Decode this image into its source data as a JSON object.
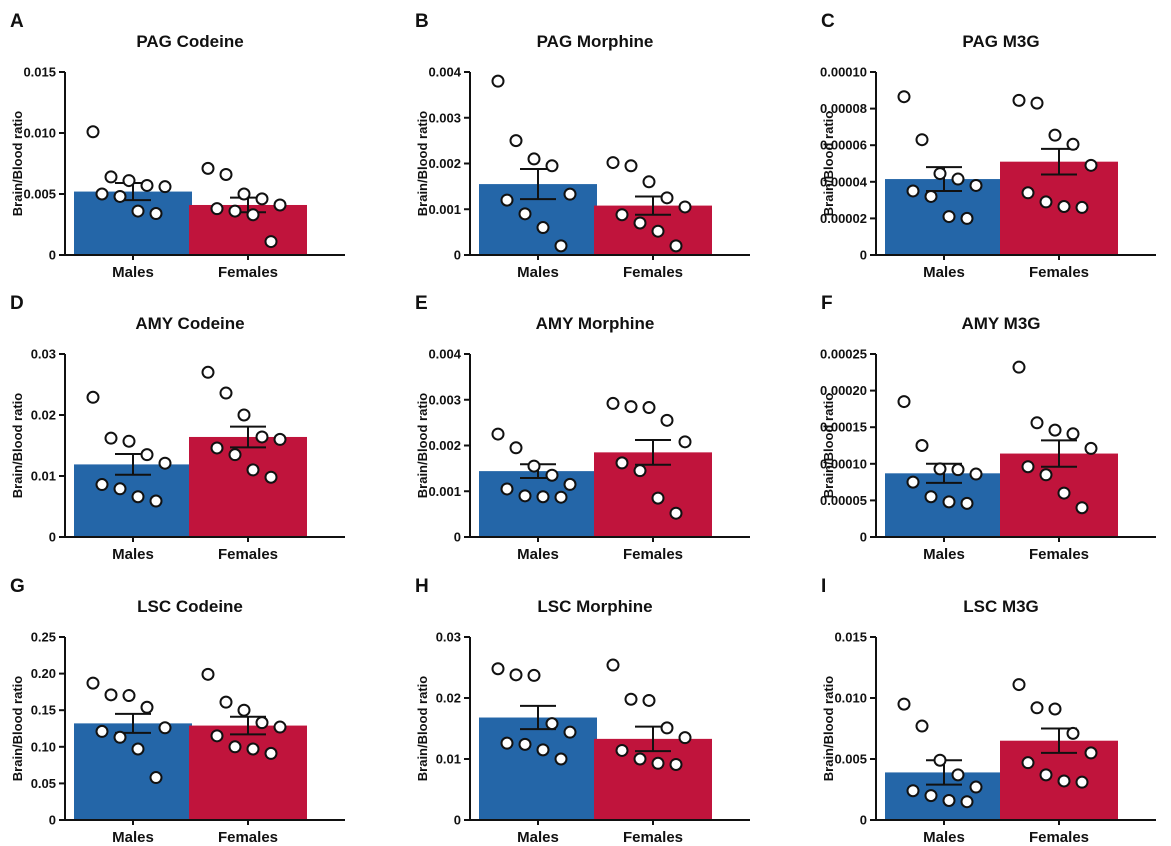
{
  "colors": {
    "males": "#2466a8",
    "females": "#c0143c",
    "axis": "#111111",
    "point_fill": "#ffffff"
  },
  "chart_data": [
    {
      "panel": "A",
      "title": "PAG Codeine",
      "type": "bar",
      "ylabel": "Brain/Blood ratio",
      "categories": [
        "Males",
        "Females"
      ],
      "ylim": [
        0,
        0.015
      ],
      "yticks": [
        0,
        0.005,
        0.01,
        0.015
      ],
      "ytick_labels": [
        "0",
        "0.005",
        "0.010",
        "0.015"
      ],
      "values": [
        0.0052,
        0.0041
      ],
      "sem": [
        0.0007,
        0.0006
      ],
      "points": [
        [
          0.0101,
          0.0064,
          0.0061,
          0.0057,
          0.0056,
          0.005,
          0.0048,
          0.0036,
          0.0034
        ],
        [
          0.0071,
          0.0066,
          0.005,
          0.0046,
          0.0041,
          0.0038,
          0.0036,
          0.0033,
          0.0011
        ]
      ]
    },
    {
      "panel": "B",
      "title": "PAG Morphine",
      "type": "bar",
      "ylabel": "Brain/Blood ratio",
      "categories": [
        "Males",
        "Females"
      ],
      "ylim": [
        0,
        0.004
      ],
      "yticks": [
        0,
        0.001,
        0.002,
        0.003,
        0.004
      ],
      "ytick_labels": [
        "0",
        "0.001",
        "0.002",
        "0.003",
        "0.004"
      ],
      "values": [
        0.00155,
        0.00108
      ],
      "sem": [
        0.00033,
        0.0002
      ],
      "points": [
        [
          0.0038,
          0.0025,
          0.0021,
          0.00195,
          0.00133,
          0.0012,
          0.0009,
          0.0006,
          0.0002
        ],
        [
          0.00202,
          0.00195,
          0.0016,
          0.00125,
          0.00105,
          0.00088,
          0.0007,
          0.00052,
          0.0002
        ]
      ]
    },
    {
      "panel": "C",
      "title": "PAG M3G",
      "type": "bar",
      "ylabel": "Brain/Blood ratio",
      "categories": [
        "Males",
        "Females"
      ],
      "ylim": [
        0,
        0.0001
      ],
      "yticks": [
        0,
        2e-05,
        4e-05,
        6e-05,
        8e-05,
        0.0001
      ],
      "ytick_labels": [
        "0",
        "0.00002",
        "0.00004",
        "0.00006",
        "0.00008",
        "0.00010"
      ],
      "values": [
        4.15e-05,
        5.1e-05
      ],
      "sem": [
        6.5e-06,
        7e-06
      ],
      "points": [
        [
          8.65e-05,
          6.3e-05,
          4.45e-05,
          4.15e-05,
          3.8e-05,
          3.5e-05,
          3.2e-05,
          2.1e-05,
          2e-05
        ],
        [
          8.45e-05,
          8.3e-05,
          6.55e-05,
          6.05e-05,
          4.9e-05,
          3.4e-05,
          2.9e-05,
          2.65e-05,
          2.6e-05
        ]
      ]
    },
    {
      "panel": "D",
      "title": "AMY Codeine",
      "type": "bar",
      "ylabel": "Brain/Blood ratio",
      "categories": [
        "Males",
        "Females"
      ],
      "ylim": [
        0,
        0.03
      ],
      "yticks": [
        0,
        0.01,
        0.02,
        0.03
      ],
      "ytick_labels": [
        "0",
        "0.01",
        "0.02",
        "0.03"
      ],
      "values": [
        0.0119,
        0.0164
      ],
      "sem": [
        0.0017,
        0.0017
      ],
      "points": [
        [
          0.0229,
          0.0162,
          0.0157,
          0.0135,
          0.0121,
          0.0086,
          0.0079,
          0.0066,
          0.0059
        ],
        [
          0.027,
          0.0236,
          0.02,
          0.0164,
          0.016,
          0.0146,
          0.0135,
          0.011,
          0.0098
        ]
      ]
    },
    {
      "panel": "E",
      "title": "AMY Morphine",
      "type": "bar",
      "ylabel": "Brain/Blood ratio",
      "categories": [
        "Males",
        "Females"
      ],
      "ylim": [
        0,
        0.004
      ],
      "yticks": [
        0,
        0.001,
        0.002,
        0.003,
        0.004
      ],
      "ytick_labels": [
        "0",
        "0.001",
        "0.002",
        "0.003",
        "0.004"
      ],
      "values": [
        0.00144,
        0.00185
      ],
      "sem": [
        0.00015,
        0.00027
      ],
      "points": [
        [
          0.00225,
          0.00195,
          0.00155,
          0.00135,
          0.00115,
          0.00105,
          0.0009,
          0.00088,
          0.00087
        ],
        [
          0.00292,
          0.00285,
          0.00283,
          0.00255,
          0.00208,
          0.00162,
          0.00145,
          0.00085,
          0.00052
        ]
      ]
    },
    {
      "panel": "F",
      "title": "AMY M3G",
      "type": "bar",
      "ylabel": "Brain/Blood ratio",
      "categories": [
        "Males",
        "Females"
      ],
      "ylim": [
        0,
        0.00025
      ],
      "yticks": [
        0,
        5e-05,
        0.0001,
        0.00015,
        0.0002,
        0.00025
      ],
      "ytick_labels": [
        "0",
        "0.00005",
        "0.00010",
        "0.00015",
        "0.00020",
        "0.00025"
      ],
      "values": [
        8.7e-05,
        0.000114
      ],
      "sem": [
        1.3e-05,
        1.8e-05
      ],
      "points": [
        [
          0.000185,
          0.000125,
          9.3e-05,
          9.2e-05,
          8.6e-05,
          7.5e-05,
          5.5e-05,
          4.8e-05,
          4.6e-05
        ],
        [
          0.000232,
          0.000156,
          0.000146,
          0.000141,
          0.000121,
          9.6e-05,
          8.5e-05,
          6e-05,
          4e-05
        ]
      ]
    },
    {
      "panel": "G",
      "title": "LSC Codeine",
      "type": "bar",
      "ylabel": "Brain/Blood ratio",
      "categories": [
        "Males",
        "Females"
      ],
      "ylim": [
        0,
        0.25
      ],
      "yticks": [
        0,
        0.05,
        0.1,
        0.15,
        0.2,
        0.25
      ],
      "ytick_labels": [
        "0",
        "0.05",
        "0.10",
        "0.15",
        "0.20",
        "0.25"
      ],
      "values": [
        0.132,
        0.129
      ],
      "sem": [
        0.013,
        0.012
      ],
      "points": [
        [
          0.187,
          0.171,
          0.17,
          0.154,
          0.126,
          0.121,
          0.113,
          0.097,
          0.058
        ],
        [
          0.199,
          0.161,
          0.15,
          0.133,
          0.127,
          0.115,
          0.1,
          0.097,
          0.091
        ]
      ]
    },
    {
      "panel": "H",
      "title": "LSC Morphine",
      "type": "bar",
      "ylabel": "Brain/Blood ratio",
      "categories": [
        "Males",
        "Females"
      ],
      "ylim": [
        0,
        0.03
      ],
      "yticks": [
        0,
        0.01,
        0.02,
        0.03
      ],
      "ytick_labels": [
        "0",
        "0.01",
        "0.02",
        "0.03"
      ],
      "values": [
        0.0168,
        0.0133
      ],
      "sem": [
        0.0019,
        0.002
      ],
      "points": [
        [
          0.0248,
          0.0238,
          0.0237,
          0.0158,
          0.0144,
          0.0126,
          0.0124,
          0.0115,
          0.01
        ],
        [
          0.0254,
          0.0198,
          0.0196,
          0.0151,
          0.0135,
          0.0114,
          0.01,
          0.0093,
          0.0091
        ]
      ]
    },
    {
      "panel": "I",
      "title": "LSC M3G",
      "type": "bar",
      "ylabel": "Brain/Blood ratio",
      "categories": [
        "Males",
        "Females"
      ],
      "ylim": [
        0,
        0.015
      ],
      "yticks": [
        0,
        0.005,
        0.01,
        0.015
      ],
      "ytick_labels": [
        "0",
        "0.005",
        "0.010",
        "0.015"
      ],
      "values": [
        0.0039,
        0.0065
      ],
      "sem": [
        0.001,
        0.001
      ],
      "points": [
        [
          0.0095,
          0.0077,
          0.0049,
          0.0037,
          0.0027,
          0.0024,
          0.002,
          0.0016,
          0.0015
        ],
        [
          0.0111,
          0.0092,
          0.0091,
          0.0071,
          0.0055,
          0.0047,
          0.0037,
          0.0032,
          0.0031
        ]
      ]
    }
  ]
}
